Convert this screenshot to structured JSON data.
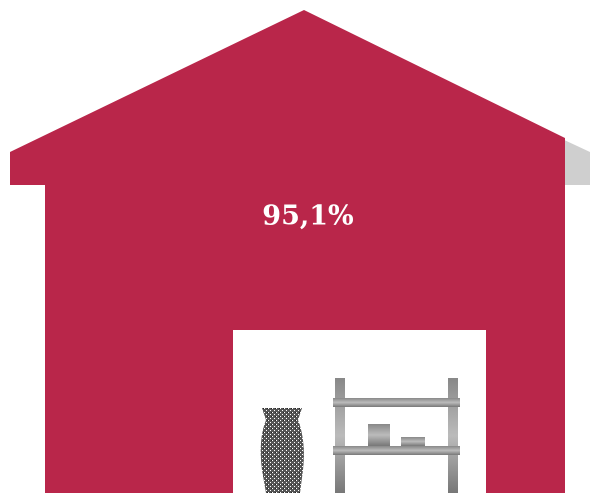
{
  "value_label": "95,1%"
}
